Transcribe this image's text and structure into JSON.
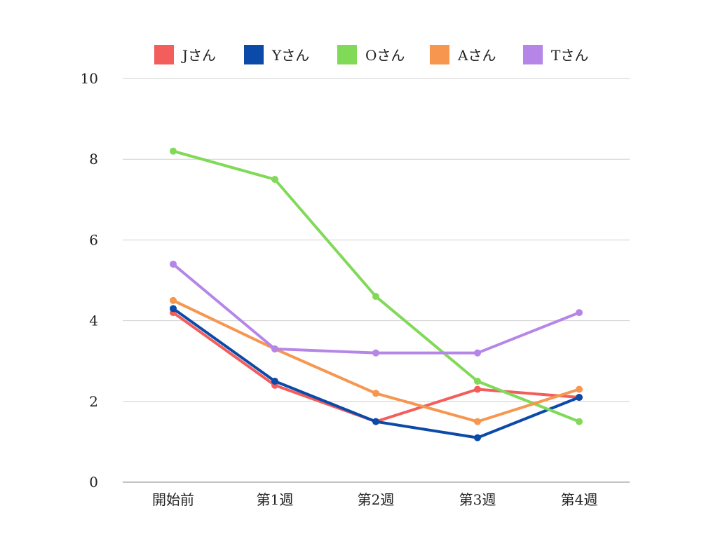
{
  "chart_data": {
    "type": "line",
    "title": "",
    "xlabel": "",
    "ylabel": "",
    "categories": [
      "開始前",
      "第1週",
      "第2週",
      "第3週",
      "第4週"
    ],
    "ylim": [
      0,
      10
    ],
    "yticks": [
      0,
      2,
      4,
      6,
      8,
      10
    ],
    "grid": true,
    "legend_position": "top",
    "series": [
      {
        "name": "Jさん",
        "color": "#f35d5b",
        "values": [
          4.2,
          2.4,
          1.5,
          2.3,
          2.1
        ]
      },
      {
        "name": "Yさん",
        "color": "#0b4aa8",
        "values": [
          4.3,
          2.5,
          1.5,
          1.1,
          2.1
        ]
      },
      {
        "name": "Oさん",
        "color": "#80d957",
        "values": [
          8.2,
          7.5,
          4.6,
          2.5,
          1.5
        ]
      },
      {
        "name": "Aさん",
        "color": "#f6964f",
        "values": [
          4.5,
          3.3,
          2.2,
          1.5,
          2.3
        ]
      },
      {
        "name": "Tさん",
        "color": "#b586e7",
        "values": [
          5.4,
          3.3,
          3.2,
          3.2,
          4.2
        ]
      }
    ]
  }
}
